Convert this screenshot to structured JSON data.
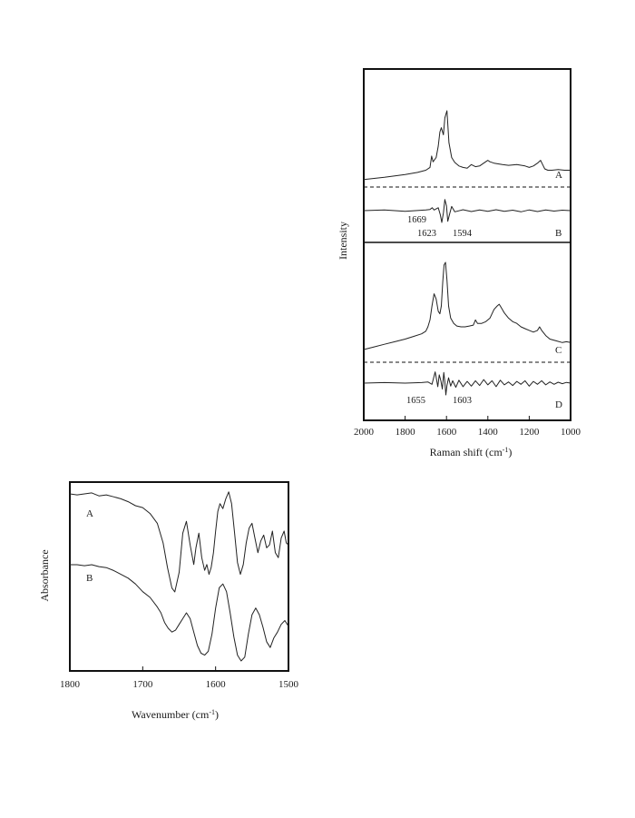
{
  "chart_data": [
    {
      "type": "line",
      "xlabel": "Raman shift (cm-1)",
      "ylabel": "Intensity",
      "xlim": [
        2000,
        1000
      ],
      "x_reversed": true,
      "x_ticks": [
        "2000",
        "1800",
        "1600",
        "1400",
        "1200",
        "1000"
      ],
      "y_ticks_shown": false,
      "grid": false,
      "stacked_traces": true,
      "dashed_separators": 2,
      "series": [
        {
          "name": "A",
          "x": [
            2000,
            1900,
            1800,
            1740,
            1700,
            1680,
            1672,
            1665,
            1650,
            1640,
            1632,
            1625,
            1615,
            1608,
            1598,
            1588,
            1575,
            1560,
            1540,
            1520,
            1500,
            1480,
            1460,
            1440,
            1420,
            1400,
            1390,
            1370,
            1350,
            1330,
            1300,
            1260,
            1220,
            1200,
            1180,
            1160,
            1145,
            1135,
            1125,
            1110,
            1090,
            1060,
            1030,
            1000
          ],
          "y": [
            0.03,
            0.06,
            0.1,
            0.13,
            0.16,
            0.2,
            0.36,
            0.28,
            0.34,
            0.5,
            0.7,
            0.76,
            0.66,
            0.9,
            1.0,
            0.55,
            0.34,
            0.27,
            0.22,
            0.2,
            0.19,
            0.24,
            0.21,
            0.22,
            0.26,
            0.3,
            0.28,
            0.26,
            0.25,
            0.24,
            0.23,
            0.24,
            0.22,
            0.2,
            0.22,
            0.26,
            0.3,
            0.24,
            0.18,
            0.16,
            0.16,
            0.17,
            0.16,
            0.16
          ]
        },
        {
          "name": "B",
          "type": "difference",
          "x": [
            2000,
            1900,
            1800,
            1700,
            1680,
            1669,
            1660,
            1650,
            1640,
            1630,
            1623,
            1615,
            1608,
            1600,
            1594,
            1585,
            1575,
            1560,
            1520,
            1480,
            1440,
            1400,
            1360,
            1320,
            1280,
            1240,
            1200,
            1160,
            1120,
            1080,
            1040,
            1000
          ],
          "y": [
            0.0,
            0.05,
            -0.05,
            0.05,
            0.1,
            0.25,
            0.05,
            0.15,
            0.25,
            -0.35,
            -1.0,
            -0.2,
            0.95,
            0.4,
            -0.9,
            -0.3,
            0.35,
            -0.1,
            0.08,
            -0.08,
            0.06,
            -0.05,
            0.08,
            -0.06,
            0.04,
            -0.1,
            0.06,
            -0.08,
            0.05,
            -0.04,
            0.04,
            0.0
          ],
          "peak_labels": [
            "1669",
            "1623",
            "1594"
          ]
        },
        {
          "name": "C",
          "x": [
            2000,
            1950,
            1900,
            1850,
            1800,
            1760,
            1720,
            1700,
            1690,
            1680,
            1670,
            1660,
            1650,
            1640,
            1632,
            1625,
            1618,
            1612,
            1605,
            1598,
            1590,
            1580,
            1565,
            1550,
            1530,
            1510,
            1490,
            1470,
            1460,
            1450,
            1430,
            1410,
            1390,
            1370,
            1355,
            1345,
            1335,
            1320,
            1300,
            1280,
            1260,
            1240,
            1220,
            1200,
            1180,
            1160,
            1150,
            1140,
            1120,
            1100,
            1070,
            1040,
            1020,
            1000
          ],
          "y": [
            0.0,
            0.03,
            0.06,
            0.09,
            0.12,
            0.15,
            0.18,
            0.21,
            0.26,
            0.34,
            0.5,
            0.64,
            0.58,
            0.44,
            0.41,
            0.5,
            0.78,
            0.97,
            1.0,
            0.8,
            0.5,
            0.36,
            0.3,
            0.27,
            0.26,
            0.26,
            0.27,
            0.28,
            0.34,
            0.3,
            0.3,
            0.32,
            0.36,
            0.46,
            0.5,
            0.52,
            0.48,
            0.42,
            0.36,
            0.32,
            0.3,
            0.26,
            0.24,
            0.22,
            0.2,
            0.22,
            0.26,
            0.22,
            0.16,
            0.12,
            0.1,
            0.08,
            0.09,
            0.08
          ]
        },
        {
          "name": "D",
          "type": "difference",
          "x": [
            2000,
            1900,
            1800,
            1720,
            1690,
            1670,
            1660,
            1655,
            1650,
            1642,
            1635,
            1627,
            1620,
            1613,
            1608,
            1603,
            1598,
            1590,
            1580,
            1570,
            1555,
            1540,
            1520,
            1500,
            1480,
            1460,
            1440,
            1420,
            1400,
            1380,
            1360,
            1340,
            1320,
            1300,
            1280,
            1260,
            1240,
            1220,
            1200,
            1180,
            1160,
            1140,
            1120,
            1100,
            1080,
            1060,
            1040,
            1020,
            1000
          ],
          "y": [
            0.0,
            0.05,
            0.0,
            0.05,
            0.1,
            -0.1,
            0.6,
            0.95,
            0.5,
            -0.3,
            0.7,
            0.2,
            -0.5,
            0.9,
            0.1,
            -1.0,
            -0.2,
            0.45,
            -0.25,
            0.2,
            -0.35,
            0.25,
            -0.3,
            0.15,
            -0.25,
            0.2,
            -0.2,
            0.3,
            -0.15,
            0.2,
            -0.3,
            0.25,
            -0.15,
            0.1,
            -0.2,
            0.15,
            -0.1,
            0.2,
            -0.25,
            0.15,
            -0.1,
            0.2,
            -0.15,
            0.1,
            -0.1,
            0.08,
            -0.05,
            0.06,
            0.0
          ],
          "peak_labels": [
            "1655",
            "1603"
          ]
        }
      ]
    },
    {
      "type": "line",
      "xlabel": "Wavenumber (cm-1)",
      "ylabel": "Absorbance",
      "xlim": [
        1800,
        1500
      ],
      "x_reversed": true,
      "x_ticks": [
        "1800",
        "1700",
        "1600",
        "1500"
      ],
      "y_ticks_shown": false,
      "grid": false,
      "stacked_traces": true,
      "series": [
        {
          "name": "A",
          "x": [
            1800,
            1790,
            1780,
            1770,
            1760,
            1750,
            1740,
            1730,
            1720,
            1710,
            1700,
            1690,
            1680,
            1672,
            1666,
            1660,
            1656,
            1650,
            1645,
            1640,
            1635,
            1630,
            1627,
            1623,
            1619,
            1615,
            1612,
            1609,
            1606,
            1603,
            1600,
            1597,
            1594,
            1590,
            1586,
            1582,
            1578,
            1574,
            1570,
            1566,
            1562,
            1558,
            1554,
            1550,
            1546,
            1542,
            1538,
            1534,
            1530,
            1526,
            1522,
            1518,
            1514,
            1510,
            1506,
            1503,
            1500
          ],
          "y": [
            1.0,
            0.99,
            1.0,
            1.01,
            0.98,
            0.99,
            0.97,
            0.95,
            0.92,
            0.88,
            0.86,
            0.8,
            0.7,
            0.5,
            0.25,
            0.04,
            0.0,
            0.2,
            0.6,
            0.72,
            0.48,
            0.28,
            0.45,
            0.6,
            0.35,
            0.22,
            0.28,
            0.18,
            0.25,
            0.4,
            0.62,
            0.82,
            0.9,
            0.85,
            0.95,
            1.02,
            0.9,
            0.6,
            0.3,
            0.18,
            0.28,
            0.5,
            0.65,
            0.7,
            0.55,
            0.4,
            0.52,
            0.58,
            0.45,
            0.48,
            0.62,
            0.4,
            0.35,
            0.55,
            0.62,
            0.5,
            0.48
          ]
        },
        {
          "name": "B",
          "x": [
            1800,
            1790,
            1780,
            1770,
            1760,
            1750,
            1740,
            1730,
            1720,
            1710,
            1700,
            1690,
            1680,
            1675,
            1670,
            1665,
            1660,
            1655,
            1650,
            1645,
            1640,
            1635,
            1630,
            1625,
            1620,
            1615,
            1610,
            1605,
            1600,
            1595,
            1590,
            1585,
            1580,
            1575,
            1570,
            1565,
            1560,
            1555,
            1550,
            1545,
            1540,
            1535,
            1530,
            1525,
            1520,
            1515,
            1510,
            1505,
            1500
          ],
          "y": [
            1.0,
            1.0,
            0.99,
            1.0,
            0.98,
            0.97,
            0.94,
            0.9,
            0.86,
            0.8,
            0.72,
            0.66,
            0.56,
            0.5,
            0.4,
            0.34,
            0.3,
            0.32,
            0.38,
            0.44,
            0.5,
            0.44,
            0.3,
            0.16,
            0.08,
            0.06,
            0.1,
            0.28,
            0.55,
            0.76,
            0.8,
            0.72,
            0.5,
            0.25,
            0.06,
            0.0,
            0.04,
            0.28,
            0.48,
            0.55,
            0.48,
            0.35,
            0.2,
            0.14,
            0.24,
            0.3,
            0.38,
            0.42,
            0.36
          ]
        }
      ]
    }
  ],
  "labels": {
    "raman": {
      "xlabel_text": "Raman shift (cm",
      "xlabel_sup": "-1",
      "xlabel_close": ")",
      "ylabel": "Intensity",
      "trace_A": "A",
      "trace_B": "B",
      "trace_C": "C",
      "trace_D": "D"
    },
    "ir": {
      "xlabel_text": "Wavenumber (cm",
      "xlabel_sup": "-1",
      "xlabel_close": ")",
      "ylabel": "Absorbance",
      "trace_A": "A",
      "trace_B": "B"
    }
  }
}
